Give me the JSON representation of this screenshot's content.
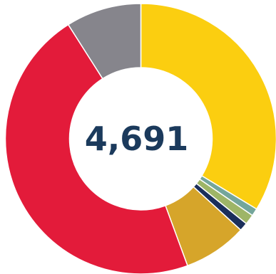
{
  "chart_data": {
    "type": "pie",
    "style": "donut",
    "title": "",
    "center_label": "4,691",
    "legend": "none",
    "slices": [
      {
        "value": 33.7,
        "color": "#fbce10"
      },
      {
        "value": 0.9,
        "color": "#74a69b"
      },
      {
        "value": 1.2,
        "color": "#9eb567"
      },
      {
        "value": 1.0,
        "color": "#1b2f5b"
      },
      {
        "value": 7.6,
        "color": "#d6a52a"
      },
      {
        "value": 46.6,
        "color": "#e31b3a"
      },
      {
        "value": 9.0,
        "color": "#86858c"
      }
    ]
  }
}
